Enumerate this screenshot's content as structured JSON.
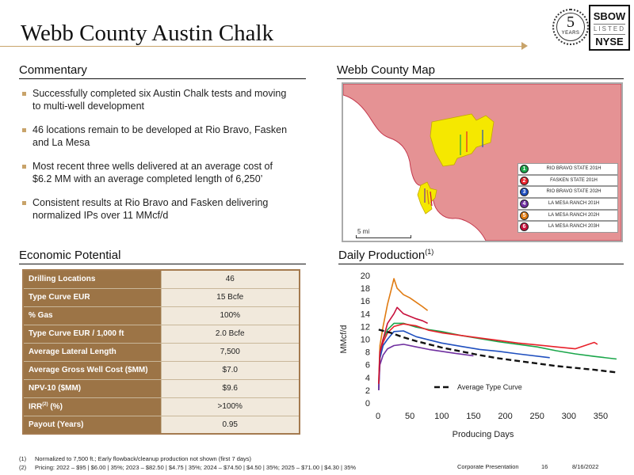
{
  "title": "Webb County Austin Chalk",
  "logo": {
    "years_number": "5",
    "years_word": "YEARS",
    "ticker": "SBOW",
    "listed_word": "LISTED",
    "exchange": "NYSE"
  },
  "commentary": {
    "header": "Commentary",
    "bullets": [
      "Successfully completed six Austin Chalk tests and moving to multi-well development",
      "46 locations remain to be developed at Rio Bravo, Fasken and La Mesa",
      "Most recent three wells delivered at an average cost of $6.2 MM with an average completed length of 6,250’",
      "Consistent results at Rio Bravo and Fasken delivering normalized IPs over 11 MMcf/d"
    ]
  },
  "map": {
    "header": "Webb County Map",
    "scale_label": "5 mi",
    "colors": {
      "county": "#e59294",
      "acreage": "#f5e800",
      "boundary": "#c4374c"
    },
    "legend": [
      {
        "num": "1",
        "label": "RIO BRAVO STATE 201H",
        "color": "#1aa64a"
      },
      {
        "num": "2",
        "label": "FASKEN STATE 201H",
        "color": "#e8202a"
      },
      {
        "num": "3",
        "label": "RIO BRAVO STATE 202H",
        "color": "#1f4fbf"
      },
      {
        "num": "4",
        "label": "LA MESA RANCH 201H",
        "color": "#7030a0"
      },
      {
        "num": "5",
        "label": "LA MESA RANCH 202H",
        "color": "#e07b12"
      },
      {
        "num": "6",
        "label": "LA MESA RANCH 203H",
        "color": "#c8103c"
      }
    ]
  },
  "economic": {
    "header": "Economic Potential",
    "rows": [
      {
        "label": "Drilling Locations",
        "value": "46"
      },
      {
        "label": "Type Curve EUR",
        "value": "15 Bcfe"
      },
      {
        "label": "% Gas",
        "value": "100%"
      },
      {
        "label": "Type Curve EUR / 1,000 ft",
        "value": "2.0 Bcfe"
      },
      {
        "label": "Average Lateral Length",
        "value": "7,500"
      },
      {
        "label": "Average Gross Well Cost ($MM)",
        "value": "$7.0"
      },
      {
        "label": "NPV-10 ($MM)",
        "value": "$9.6"
      },
      {
        "label": "IRR",
        "label_sup": "(2)",
        "label_suffix": " (%)",
        "value": ">100%"
      },
      {
        "label": "Payout (Years)",
        "value": "0.95"
      }
    ]
  },
  "production": {
    "header": "Daily Production",
    "header_sup": "(1)"
  },
  "chart_data": {
    "type": "line",
    "title": "Daily Production",
    "xlabel": "Producing Days",
    "ylabel": "MMcf/d",
    "xlim": [
      0,
      380
    ],
    "ylim": [
      0,
      20
    ],
    "xticks": [
      0,
      50,
      100,
      150,
      200,
      250,
      300,
      350
    ],
    "yticks": [
      0,
      2,
      4,
      6,
      8,
      10,
      12,
      14,
      16,
      18,
      20
    ],
    "legend": "Average Type Curve",
    "series": [
      {
        "color": "#1aa64a",
        "x": [
          1,
          3,
          8,
          15,
          25,
          40,
          60,
          80,
          100,
          130,
          160,
          190,
          220,
          250,
          280,
          310,
          340,
          375
        ],
        "y": [
          2,
          8,
          10,
          11.5,
          12.5,
          12.5,
          11.9,
          11.5,
          11.2,
          10.6,
          10.1,
          9.6,
          9.2,
          8.8,
          8.2,
          7.7,
          7.3,
          6.9
        ]
      },
      {
        "color": "#e8202a",
        "x": [
          1,
          3,
          8,
          15,
          25,
          40,
          60,
          80,
          100,
          130,
          160,
          190,
          220,
          250,
          280,
          310,
          340,
          345
        ],
        "y": [
          2,
          7,
          9.5,
          11,
          12,
          12.4,
          12.1,
          11.4,
          11,
          10.6,
          10.2,
          9.8,
          9.4,
          9.1,
          8.8,
          8.5,
          9.5,
          9.2
        ]
      },
      {
        "color": "#1f4fbf",
        "x": [
          1,
          3,
          8,
          15,
          25,
          40,
          60,
          80,
          100,
          130,
          160,
          190,
          220,
          270
        ],
        "y": [
          2,
          7,
          9,
          10,
          11.2,
          11.3,
          10.4,
          9.9,
          9.4,
          8.9,
          8.4,
          8.1,
          7.7,
          7.1
        ]
      },
      {
        "color": "#7030a0",
        "x": [
          1,
          3,
          8,
          15,
          25,
          40,
          60,
          80,
          100,
          120,
          150
        ],
        "y": [
          2,
          6,
          7.5,
          8.5,
          9,
          9.2,
          8.8,
          8.4,
          8.1,
          7.8,
          7.4
        ]
      },
      {
        "color": "#e07b12",
        "x": [
          1,
          3,
          8,
          15,
          20,
          25,
          30,
          40,
          50,
          60,
          70,
          78
        ],
        "y": [
          3,
          9,
          12,
          15.5,
          17.5,
          19.5,
          18,
          17,
          16.5,
          15.8,
          15.1,
          14.5
        ]
      },
      {
        "color": "#c8103c",
        "x": [
          1,
          3,
          8,
          15,
          25,
          30,
          40,
          50,
          60,
          70,
          78
        ],
        "y": [
          3,
          8,
          10,
          12.5,
          14,
          15,
          14,
          13.6,
          13.2,
          12.9,
          12.5
        ]
      },
      {
        "name": "Average Type Curve",
        "color": "#111111",
        "dashed": true,
        "x": [
          1,
          20,
          40,
          60,
          80,
          100,
          130,
          160,
          190,
          220,
          250,
          280,
          310,
          340,
          375
        ],
        "y": [
          11.5,
          11,
          10.3,
          9.7,
          9.2,
          8.7,
          8.1,
          7.5,
          7,
          6.6,
          6.2,
          5.8,
          5.5,
          5.2,
          4.8
        ]
      }
    ]
  },
  "footnotes": [
    {
      "num": "(1)",
      "text": "Normalized to 7,500 ft.; Early flowback/cleanup production not shown (first 7 days)"
    },
    {
      "num": "(2)",
      "text": "Pricing: 2022 – $95 | $6.00 | 35%; 2023 – $82.50 | $4.75 | 35%; 2024 – $74.50 | $4.50 | 35%; 2025 – $71.00 | $4.30 | 35%"
    }
  ],
  "footer": {
    "label": "Corporate Presentation",
    "page": "16",
    "date": "8/16/2022"
  }
}
